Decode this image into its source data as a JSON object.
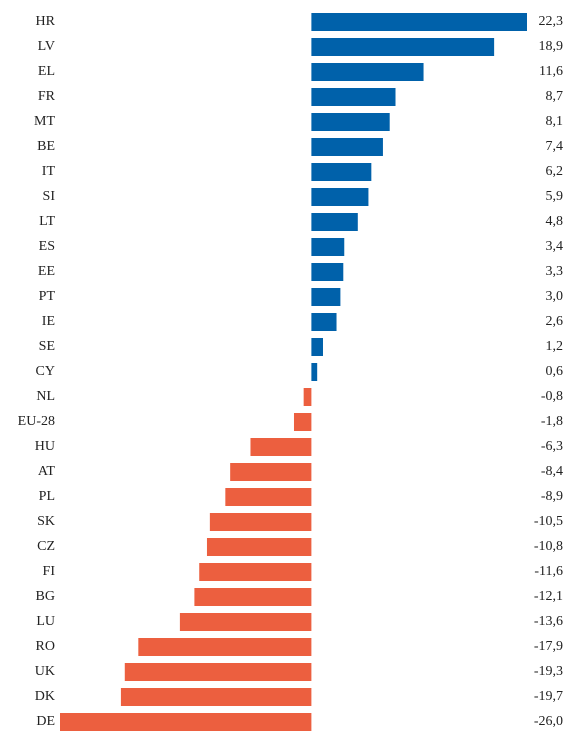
{
  "chart_data": {
    "type": "barh",
    "categories": [
      "HR",
      "LV",
      "EL",
      "FR",
      "MT",
      "BE",
      "IT",
      "SI",
      "LT",
      "ES",
      "EE",
      "PT",
      "IE",
      "SE",
      "CY",
      "NL",
      "EU-28",
      "HU",
      "AT",
      "PL",
      "SK",
      "CZ",
      "FI",
      "BG",
      "LU",
      "RO",
      "UK",
      "DK",
      "DE"
    ],
    "values": [
      22.3,
      18.9,
      11.6,
      8.7,
      8.1,
      7.4,
      6.2,
      5.9,
      4.8,
      3.4,
      3.3,
      3.0,
      2.6,
      1.2,
      0.6,
      -0.8,
      -1.8,
      -6.3,
      -8.4,
      -8.9,
      -10.5,
      -10.8,
      -11.6,
      -12.1,
      -13.6,
      -17.9,
      -19.3,
      -19.7,
      -26.0
    ],
    "value_labels": [
      "22,3",
      "18,9",
      "11,6",
      "8,7",
      "8,1",
      "7,4",
      "6,2",
      "5,9",
      "4,8",
      "3,4",
      "3,3",
      "3,0",
      "2,6",
      "1,2",
      "0,6",
      "-0,8",
      "-1,8",
      "-6,3",
      "-8,4",
      "-8,9",
      "-10,5",
      "-10,8",
      "-11,6",
      "-12,1",
      "-13,6",
      "-17,9",
      "-19,3",
      "-19,7",
      "-26,0"
    ],
    "color": "#0061aa",
    "negative_color": "#ec5f3f",
    "xlim": [
      -26,
      22.3
    ]
  }
}
